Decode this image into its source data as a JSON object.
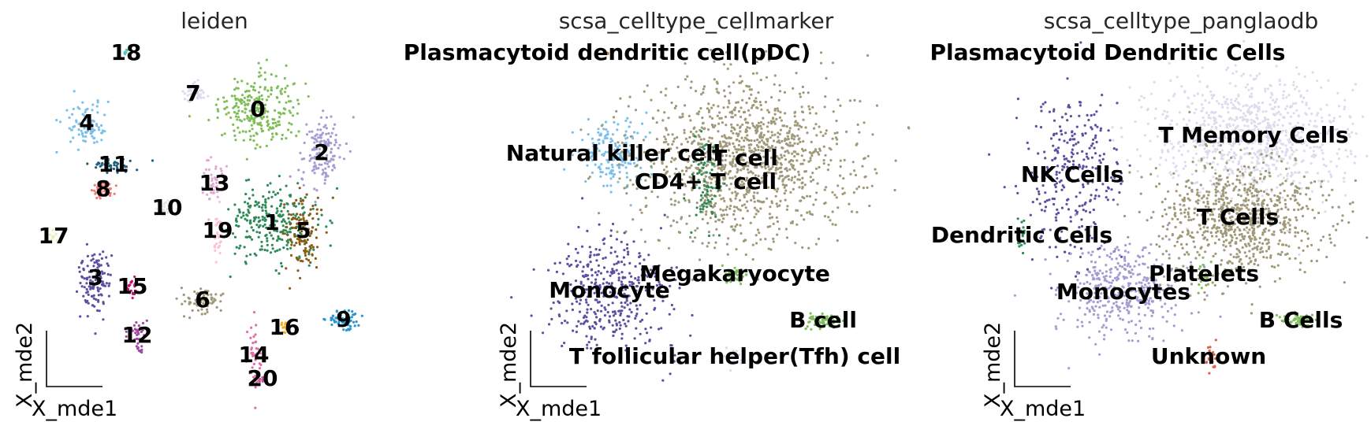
{
  "chart_data": [
    {
      "type": "scatter",
      "title": "leiden",
      "xlabel": "X_mde1",
      "ylabel": "X_mde2",
      "legend": "on data",
      "clusters": [
        {
          "label": "0",
          "color": "#7fbf5a",
          "x": 0.65,
          "y": 2.2
        },
        {
          "label": "1",
          "color": "#2e8b57",
          "x": 0.75,
          "y": 0.3
        },
        {
          "label": "2",
          "color": "#a79bd4",
          "x": 1.9,
          "y": 1.6
        },
        {
          "label": "3",
          "color": "#5e4fa2",
          "x": -4.3,
          "y": -1.2
        },
        {
          "label": "4",
          "color": "#7cc0ea",
          "x": -4.45,
          "y": 2.25
        },
        {
          "label": "5",
          "color": "#8b5a14",
          "x": 1.3,
          "y": 0.25
        },
        {
          "label": "6",
          "color": "#a09a7a",
          "x": -0.95,
          "y": -1.75
        },
        {
          "label": "7",
          "color": "#dcdcec",
          "x": -1.1,
          "y": 3.05
        },
        {
          "label": "8",
          "color": "#f07b72",
          "x": -4.1,
          "y": 0.95
        },
        {
          "label": "9",
          "color": "#2a95d4",
          "x": 2.6,
          "y": -2.3
        },
        {
          "label": "10",
          "color": "#e6e6e6",
          "x": -1.85,
          "y": 0.6
        },
        {
          "label": "11",
          "color": "#1f5f7f",
          "x": -3.9,
          "y": 1.3
        },
        {
          "label": "12",
          "color": "#a04aa0",
          "x": -3.45,
          "y": -2.9
        },
        {
          "label": "13",
          "color": "#e3a9d2",
          "x": -1.0,
          "y": 1.15
        },
        {
          "label": "14",
          "color": "#e16ea9",
          "x": 0.1,
          "y": -3.3
        },
        {
          "label": "15",
          "color": "#c0176f",
          "x": -3.8,
          "y": -1.55
        },
        {
          "label": "16",
          "color": "#f0b21e",
          "x": 0.6,
          "y": -2.5
        },
        {
          "label": "17",
          "color": "#e6efb3",
          "x": -5.0,
          "y": 0.05
        },
        {
          "label": "18",
          "color": "#56c4c2",
          "x": -3.2,
          "y": 4.25
        },
        {
          "label": "19",
          "color": "#ffc0d8",
          "x": -0.1,
          "y": -0.45
        },
        {
          "label": "20",
          "color": "#c85a9a",
          "x": 0.2,
          "y": -3.8
        }
      ]
    },
    {
      "type": "scatter",
      "title": "scsa_celltype_cellmarker",
      "xlabel": "X_mde1",
      "ylabel": "X_mde2",
      "legend": "on data",
      "clusters": [
        {
          "label": "Plasmacytoid dendritic cell(pDC)",
          "color": "#b07a1e",
          "x": -3.1,
          "y": 4.15
        },
        {
          "label": "Natural killer cell",
          "color": "#7cc0ea",
          "x": -3.6,
          "y": 1.65
        },
        {
          "label": "T cell",
          "color": "#a09a7a",
          "x": 0.85,
          "y": 1.4
        },
        {
          "label": "CD4+ T cell",
          "color": "#2e8b57",
          "x": -0.7,
          "y": 0.6
        },
        {
          "label": "Megakaryocyte",
          "color": "#7fbf5a",
          "x": -0.55,
          "y": -1.25
        },
        {
          "label": "Monocyte",
          "color": "#5e4fa2",
          "x": -3.1,
          "y": -2.2
        },
        {
          "label": "B cell",
          "color": "#7fbf5a",
          "x": 2.5,
          "y": -2.3
        },
        {
          "label": "T follicular helper(Tfh) cell",
          "color": "#dcdcec",
          "x": 0.0,
          "y": -3.4
        }
      ]
    },
    {
      "type": "scatter",
      "title": "scsa_celltype_panglaodb",
      "xlabel": "X_mde1",
      "ylabel": "X_mde2",
      "legend": "on data",
      "clusters": [
        {
          "label": "Plasmacytoid Dendritic Cells",
          "color": "#56a0d4",
          "x": -3.2,
          "y": 4.15
        },
        {
          "label": "T Memory Cells",
          "color": "#dcdcec",
          "x": 1.1,
          "y": 2.0
        },
        {
          "label": "NK Cells",
          "color": "#5e4fa2",
          "x": -3.4,
          "y": 1.0
        },
        {
          "label": "T Cells",
          "color": "#a09a7a",
          "x": 0.9,
          "y": 0.3
        },
        {
          "label": "Dendritic Cells",
          "color": "#2e8b57",
          "x": -4.2,
          "y": -0.15
        },
        {
          "label": "Platelets",
          "color": "#7fbf5a",
          "x": 0.0,
          "y": -1.6
        },
        {
          "label": "Monocytes",
          "color": "#a79bd4",
          "x": -2.6,
          "y": -1.75
        },
        {
          "label": "B Cells",
          "color": "#7fbf5a",
          "x": 2.6,
          "y": -2.35
        },
        {
          "label": "Unknown",
          "color": "#e0604e",
          "x": -0.5,
          "y": -3.1
        }
      ]
    }
  ]
}
